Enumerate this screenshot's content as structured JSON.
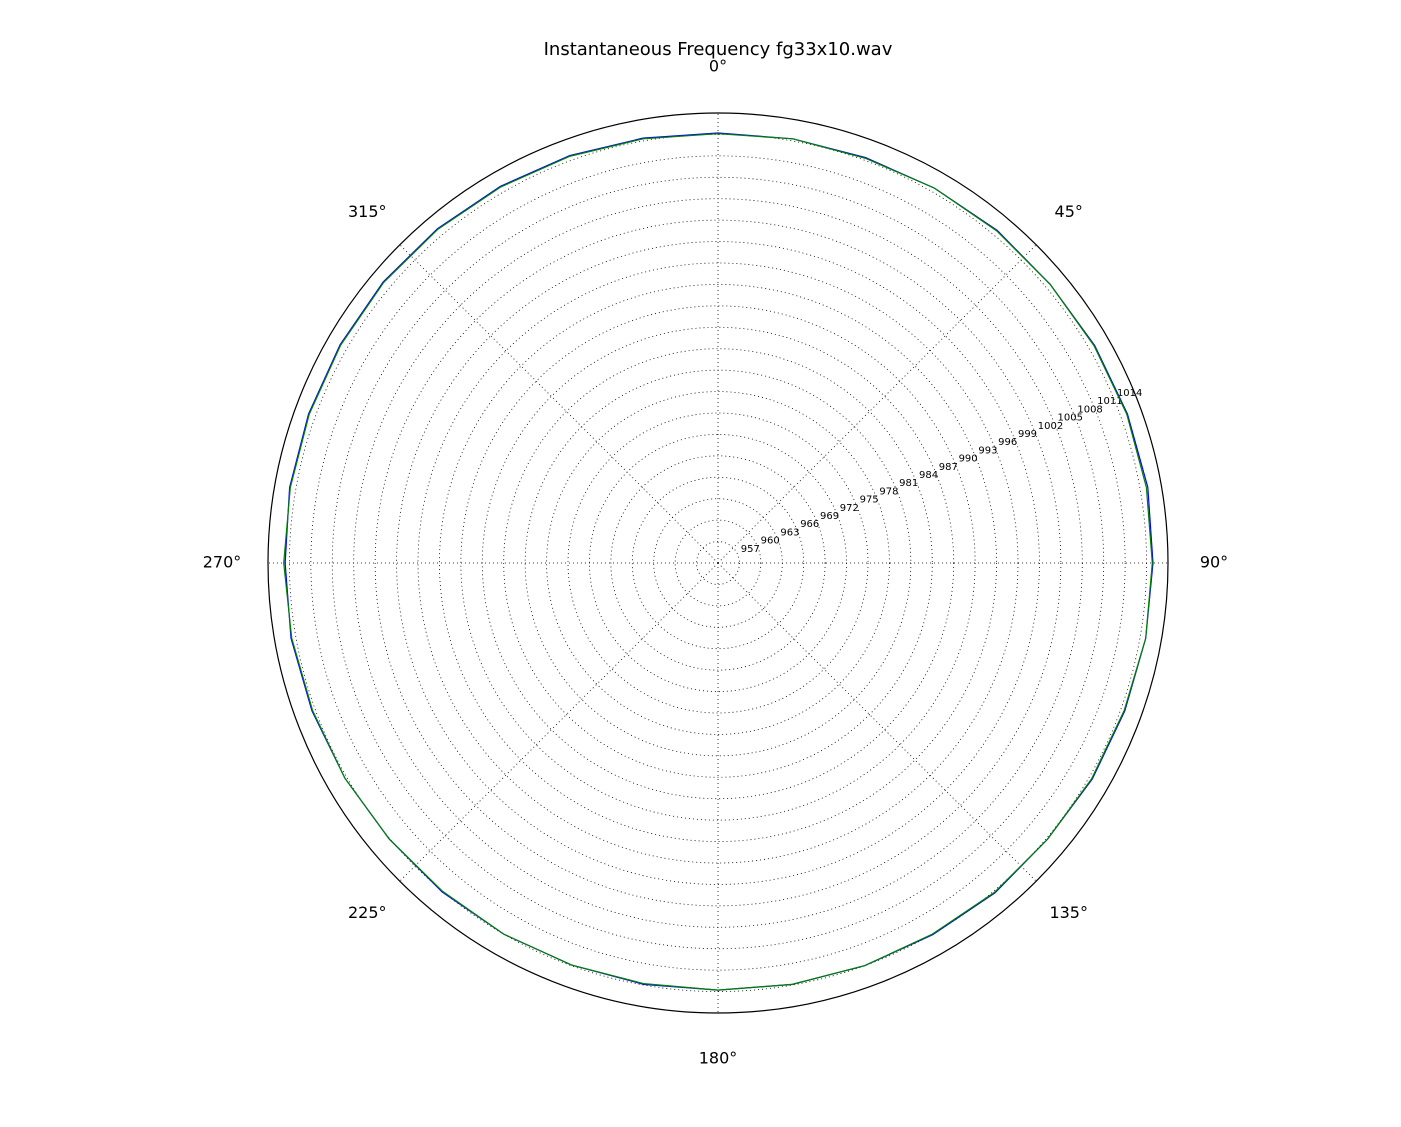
{
  "chart_data": {
    "type": "polar",
    "title": "Instantaneous Frequency  fg33x10.wav",
    "theta_zero": "top",
    "theta_direction": "clockwise",
    "grid": true,
    "x": [
      0,
      10,
      20,
      30,
      40,
      50,
      60,
      70,
      80,
      90,
      100,
      110,
      120,
      130,
      140,
      150,
      160,
      170,
      180,
      190,
      200,
      210,
      220,
      230,
      240,
      250,
      260,
      270,
      280,
      290,
      300,
      310,
      320,
      330,
      340,
      350
    ],
    "xticks": [
      {
        "value": 0,
        "label": "0°"
      },
      {
        "value": 45,
        "label": "45°"
      },
      {
        "value": 90,
        "label": "90°"
      },
      {
        "value": 135,
        "label": "135°"
      },
      {
        "value": 180,
        "label": "180°"
      },
      {
        "value": 225,
        "label": "225°"
      },
      {
        "value": 270,
        "label": "270°"
      },
      {
        "value": 315,
        "label": "315°"
      }
    ],
    "ylim": [
      954,
      1017
    ],
    "yticks": [
      957,
      960,
      963,
      966,
      969,
      972,
      975,
      978,
      981,
      984,
      987,
      990,
      993,
      996,
      999,
      1002,
      1005,
      1008,
      1011,
      1014
    ],
    "series": [
      {
        "color": "#0000ff",
        "values": [
          1014.2,
          1014.3,
          1014.4,
          1014.6,
          1014.8,
          1014.7,
          1014.9,
          1015.0,
          1015.1,
          1014.9,
          1014.8,
          1014.6,
          1014.5,
          1014.2,
          1014.3,
          1014.1,
          1014.0,
          1013.9,
          1013.8,
          1013.9,
          1013.9,
          1014.0,
          1014.1,
          1014.1,
          1014.3,
          1014.5,
          1014.7,
          1014.6,
          1014.9,
          1015.0,
          1015.1,
          1015.2,
          1015.1,
          1014.9,
          1014.7,
          1014.4
        ]
      },
      {
        "color": "#008000",
        "values": [
          1014.1,
          1014.3,
          1014.3,
          1014.6,
          1014.7,
          1014.7,
          1014.8,
          1014.9,
          1014.9,
          1014.8,
          1014.8,
          1014.5,
          1014.4,
          1014.2,
          1014.2,
          1014.0,
          1014.0,
          1013.9,
          1013.8,
          1013.8,
          1013.9,
          1014.0,
          1014.0,
          1014.1,
          1014.3,
          1014.4,
          1014.6,
          1014.8,
          1014.8,
          1014.9,
          1015.0,
          1015.1,
          1015.0,
          1014.8,
          1014.6,
          1014.3
        ]
      }
    ]
  }
}
